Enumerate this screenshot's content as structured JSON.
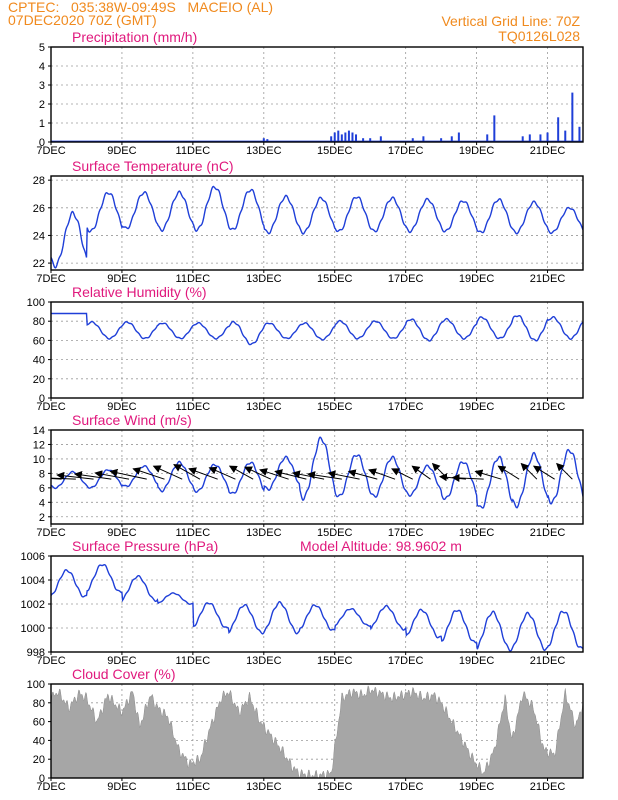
{
  "header": {
    "line1_left": "CPTEC:   035:38W-09:49S   MACEIO (AL)",
    "line2_left": "07DEC2020 70Z (GMT)",
    "line1_right": "Vertical Grid Line: 70Z",
    "line2_right": "TQ0126L028"
  },
  "colors": {
    "header": "#f08a1e",
    "title": "#e0197d",
    "series": "#1f3fd8",
    "cloud": "#a6a6a6",
    "grid": "#9a9a9a"
  },
  "x_axis": {
    "start_day": 7,
    "end_day": 22,
    "tick_days": [
      7,
      9,
      11,
      13,
      15,
      17,
      19,
      21
    ],
    "tick_labels": [
      "7DEC",
      "9DEC",
      "11DEC",
      "13DEC",
      "15DEC",
      "17DEC",
      "19DEC",
      "21DEC"
    ]
  },
  "panels": [
    {
      "id": "precip",
      "title": "Precipitation (mm/h)"
    },
    {
      "id": "temp",
      "title": "Surface Temperature (nC)"
    },
    {
      "id": "rh",
      "title": "Relative Humidity (%)"
    },
    {
      "id": "wind",
      "title": "Surface Wind (m/s)"
    },
    {
      "id": "pres",
      "title": "Surface Pressure (hPa)",
      "extra": "Model Altitude: 98.9602 m"
    },
    {
      "id": "cloud",
      "title": "Cloud Cover (%)"
    }
  ],
  "chart_data": [
    {
      "type": "bar",
      "title": "Precipitation (mm/h)",
      "ylim": [
        0,
        5
      ],
      "yticks": [
        0,
        1,
        2,
        3,
        4,
        5
      ],
      "x": [
        7.5,
        9.5,
        11.0,
        13.0,
        13.1,
        14.9,
        15.0,
        15.1,
        15.2,
        15.3,
        15.4,
        15.5,
        15.6,
        15.8,
        16.0,
        16.3,
        17.2,
        17.5,
        18.0,
        18.3,
        18.5,
        19.3,
        19.5,
        20.3,
        20.5,
        20.8,
        21.0,
        21.3,
        21.5,
        21.7,
        21.9
      ],
      "values": [
        0.05,
        0.05,
        0.05,
        0.2,
        0.15,
        0.3,
        0.5,
        0.6,
        0.4,
        0.5,
        0.6,
        0.5,
        0.4,
        0.2,
        0.2,
        0.3,
        0.2,
        0.3,
        0.2,
        0.3,
        0.5,
        0.4,
        1.4,
        0.3,
        0.4,
        0.4,
        0.5,
        1.3,
        0.6,
        2.6,
        0.8
      ]
    },
    {
      "type": "line",
      "title": "Surface Temperature (nC)",
      "ylim": [
        21.5,
        28.3
      ],
      "yticks": [
        22,
        24,
        26,
        28
      ],
      "amin": [
        21.8,
        24.3,
        24.5,
        24.4,
        24.4,
        24.4,
        24.2,
        24.2,
        24.3,
        24.3,
        24.3,
        24.3,
        24.2,
        24.2,
        24.2
      ],
      "amax": [
        25.6,
        27.1,
        27.1,
        27.1,
        27.5,
        27.3,
        26.8,
        26.7,
        26.8,
        26.7,
        26.6,
        26.5,
        26.6,
        26.4,
        26.0
      ]
    },
    {
      "type": "line",
      "title": "Relative Humidity (%)",
      "ylim": [
        0,
        100
      ],
      "yticks": [
        0,
        20,
        40,
        60,
        80,
        100
      ],
      "amin": [
        88,
        62,
        62,
        62,
        62,
        56,
        62,
        61,
        62,
        62,
        60,
        62,
        62,
        60,
        62
      ],
      "amax": [
        88,
        79,
        79,
        78,
        78,
        79,
        78,
        78,
        80,
        80,
        82,
        82,
        84,
        86,
        84
      ]
    },
    {
      "type": "line",
      "title": "Surface Wind (m/s)",
      "ylim": [
        1,
        14
      ],
      "yticks": [
        2,
        4,
        6,
        8,
        10,
        12,
        14
      ],
      "amin": [
        6.0,
        6.0,
        6.2,
        5.6,
        5.5,
        5.2,
        5.8,
        4.6,
        4.8,
        4.8,
        5.0,
        4.5,
        3.2,
        3.5,
        4.0
      ],
      "amax": [
        8.2,
        8.5,
        9.0,
        9.5,
        9.2,
        9.5,
        10.2,
        12.8,
        10.6,
        10.2,
        9.0,
        9.6,
        10.2,
        10.6,
        11.2
      ],
      "arrows": {
        "x": [
          7.3,
          7.7,
          8.2,
          8.7,
          9.2,
          9.7,
          10.2,
          10.7,
          11.2,
          11.7,
          12.2,
          12.7,
          13.2,
          13.7,
          14.2,
          14.7,
          15.2,
          15.7,
          16.2,
          16.7,
          17.2,
          17.7,
          18.2,
          18.7,
          19.2,
          19.7,
          20.2,
          20.7,
          21.2,
          21.7
        ],
        "u": [
          -8,
          -7.5,
          -7,
          -7,
          -6.5,
          -7,
          -6,
          -5.5,
          -5,
          -5.5,
          -5,
          -4.5,
          -5,
          -5.5,
          -6,
          -6,
          -6.5,
          -6,
          -5.5,
          -5,
          -4,
          -3.5,
          -3,
          -5,
          -6,
          -5,
          -4,
          -3,
          -4,
          -3
        ],
        "v": [
          0.5,
          0.3,
          0.8,
          1.0,
          1.2,
          1.5,
          2.0,
          2.5,
          2.8,
          2.0,
          2.2,
          2.5,
          2.3,
          1.8,
          1.5,
          1.2,
          1.0,
          1.2,
          1.5,
          1.8,
          2.0,
          2.5,
          3.0,
          0.5,
          0.3,
          1.5,
          2.5,
          3.0,
          2.5,
          3.0
        ]
      }
    },
    {
      "type": "line",
      "title": "Surface Pressure (hPa)",
      "ylim": [
        998,
        1006
      ],
      "yticks": [
        998,
        1000,
        1002,
        1004,
        1006
      ],
      "amin": [
        1002.6,
        1003.0,
        1002.3,
        1002.0,
        1000.0,
        999.6,
        999.6,
        999.8,
        1000.2,
        999.9,
        999.2,
        998.8,
        998.2,
        998.2,
        998.3
      ],
      "amax": [
        1004.8,
        1005.3,
        1004.3,
        1002.9,
        1002.1,
        1001.9,
        1002.1,
        1001.9,
        1001.6,
        1001.8,
        1001.5,
        1001.5,
        1001.3,
        1001.2,
        1001.4
      ]
    },
    {
      "type": "area",
      "title": "Cloud Cover (%)",
      "ylim": [
        0,
        100
      ],
      "yticks": [
        0,
        20,
        40,
        60,
        80,
        100
      ],
      "profile_x": [
        7.0,
        7.2,
        7.5,
        7.8,
        8.0,
        8.3,
        8.6,
        9.0,
        9.3,
        9.5,
        9.8,
        10.0,
        10.3,
        10.6,
        10.9,
        11.2,
        11.5,
        11.8,
        12.0,
        12.3,
        12.6,
        12.9,
        13.2,
        13.5,
        13.8,
        14.0,
        14.3,
        14.6,
        14.9,
        15.2,
        15.5,
        15.8,
        16.0,
        16.3,
        16.6,
        16.9,
        17.2,
        17.5,
        17.8,
        18.0,
        18.3,
        18.6,
        18.9,
        19.2,
        19.5,
        19.8,
        20.0,
        20.3,
        20.6,
        20.9,
        21.2,
        21.5,
        21.8,
        22.0
      ],
      "profile_y": [
        85,
        92,
        75,
        90,
        85,
        60,
        88,
        70,
        92,
        55,
        88,
        75,
        65,
        30,
        15,
        20,
        55,
        85,
        92,
        70,
        86,
        60,
        45,
        30,
        12,
        5,
        3,
        3,
        5,
        85,
        92,
        88,
        94,
        90,
        85,
        88,
        92,
        85,
        88,
        80,
        60,
        40,
        20,
        5,
        30,
        85,
        40,
        90,
        75,
        30,
        25,
        90,
        55,
        80
      ]
    }
  ]
}
